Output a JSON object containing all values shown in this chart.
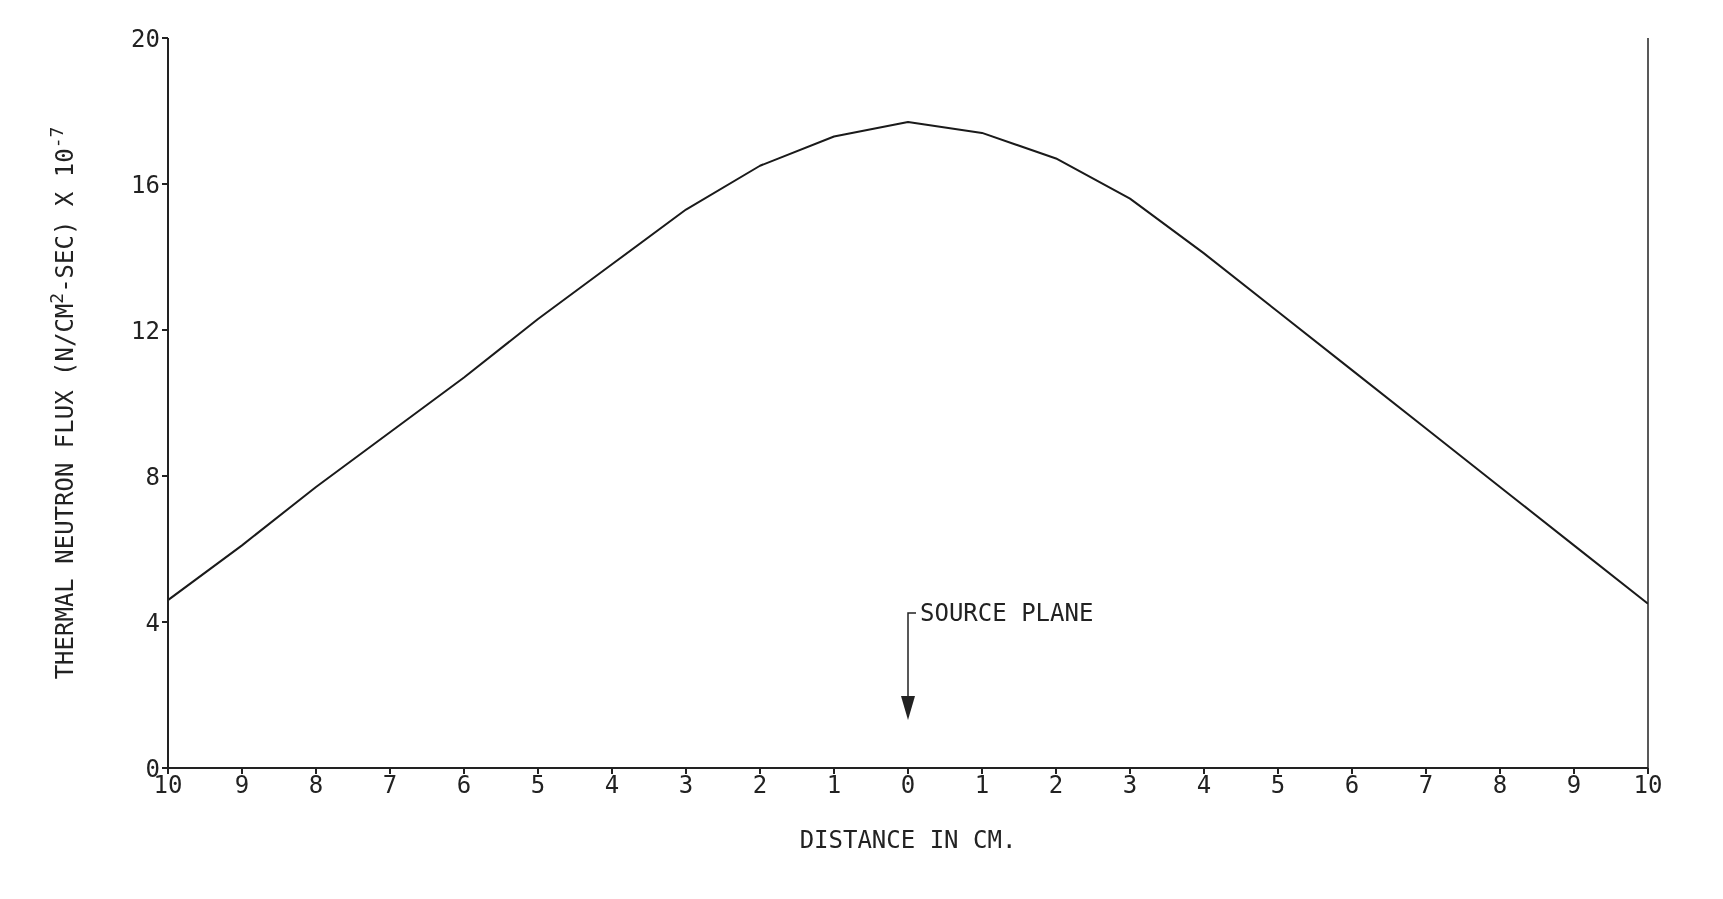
{
  "chart_data": {
    "type": "line",
    "xlabel": "DISTANCE IN CM.",
    "ylabel": "THERMAL NEUTRON FLUX (N/CM$^{2}$-SEC) X 10$^{-7}$",
    "x": [
      -10,
      -9,
      -8,
      -7,
      -6,
      -5,
      -4,
      -3,
      -2,
      -1,
      0,
      1,
      2,
      3,
      4,
      5,
      6,
      7,
      8,
      9,
      10
    ],
    "series": [
      {
        "color": "#1a1a1a",
        "values": [
          4.6,
          6.1,
          7.7,
          9.2,
          10.7,
          12.3,
          13.8,
          15.3,
          16.5,
          17.3,
          17.7,
          17.4,
          16.7,
          15.6,
          14.1,
          12.5,
          10.9,
          9.3,
          7.7,
          6.1,
          4.5
        ]
      }
    ],
    "xlim": [
      -10,
      10
    ],
    "xticks": [
      {
        "value": -10,
        "label": "10"
      },
      {
        "value": -9,
        "label": "9"
      },
      {
        "value": -8,
        "label": "8"
      },
      {
        "value": -7,
        "label": "7"
      },
      {
        "value": -6,
        "label": "6"
      },
      {
        "value": -5,
        "label": "5"
      },
      {
        "value": -4,
        "label": "4"
      },
      {
        "value": -3,
        "label": "3"
      },
      {
        "value": -2,
        "label": "2"
      },
      {
        "value": -1,
        "label": "1"
      },
      0,
      1,
      2,
      3,
      4,
      5,
      6,
      7,
      8,
      9,
      10
    ],
    "ylim": [
      0,
      20
    ],
    "yticks": [
      0,
      4,
      8,
      12,
      16,
      20
    ],
    "annotations": [
      "SOURCE PLANE"
    ],
    "marker": "none",
    "line_style": "solid"
  }
}
